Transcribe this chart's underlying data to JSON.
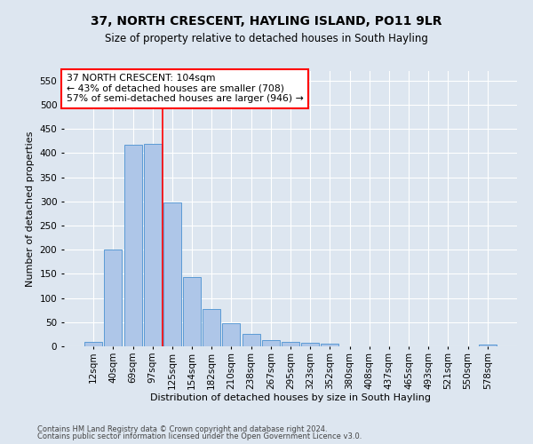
{
  "title": "37, NORTH CRESCENT, HAYLING ISLAND, PO11 9LR",
  "subtitle": "Size of property relative to detached houses in South Hayling",
  "xlabel": "Distribution of detached houses by size in South Hayling",
  "ylabel": "Number of detached properties",
  "footnote1": "Contains HM Land Registry data © Crown copyright and database right 2024.",
  "footnote2": "Contains public sector information licensed under the Open Government Licence v3.0.",
  "annotation_line1": "37 NORTH CRESCENT: 104sqm",
  "annotation_line2": "← 43% of detached houses are smaller (708)",
  "annotation_line3": "57% of semi-detached houses are larger (946) →",
  "bar_categories": [
    "12sqm",
    "40sqm",
    "69sqm",
    "97sqm",
    "125sqm",
    "154sqm",
    "182sqm",
    "210sqm",
    "238sqm",
    "267sqm",
    "295sqm",
    "323sqm",
    "352sqm",
    "380sqm",
    "408sqm",
    "437sqm",
    "465sqm",
    "493sqm",
    "521sqm",
    "550sqm",
    "578sqm"
  ],
  "bar_values": [
    10,
    200,
    418,
    420,
    298,
    143,
    77,
    48,
    25,
    13,
    10,
    8,
    5,
    0,
    0,
    0,
    0,
    0,
    0,
    0,
    4
  ],
  "bar_color": "#aec6e8",
  "bar_edge_color": "#5b9bd5",
  "property_line_x": 3.5,
  "property_line_color": "red",
  "annotation_box_color": "red",
  "background_color": "#dde6f0",
  "plot_bg_color": "#dde6f0",
  "grid_color": "#ffffff",
  "ylim": [
    0,
    570
  ],
  "yticks": [
    0,
    50,
    100,
    150,
    200,
    250,
    300,
    350,
    400,
    450,
    500,
    550
  ]
}
